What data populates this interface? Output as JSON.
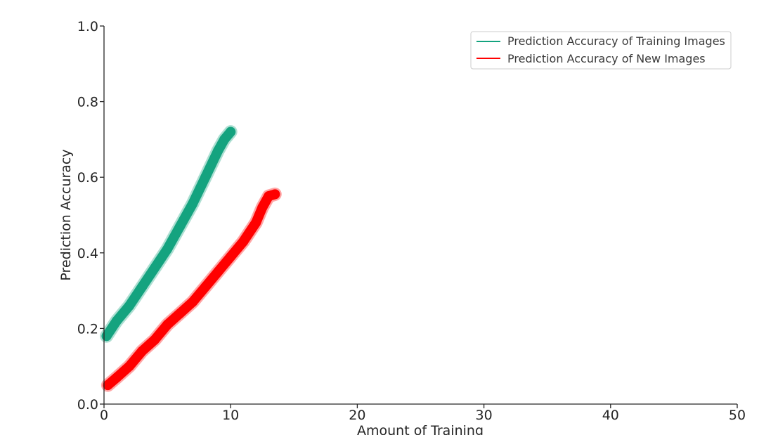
{
  "chart_data": {
    "type": "line",
    "title": "",
    "xlabel": "Amount of Training",
    "ylabel": "Prediction Accuracy",
    "xlim": [
      0,
      50
    ],
    "ylim": [
      0.0,
      1.0
    ],
    "xticks": [
      0,
      10,
      20,
      30,
      40,
      50
    ],
    "xtick_labels": [
      "0",
      "10",
      "20",
      "30",
      "40",
      "50"
    ],
    "yticks": [
      0.0,
      0.2,
      0.4,
      0.6,
      0.8,
      1.0
    ],
    "ytick_labels": [
      "0.0",
      "0.2",
      "0.4",
      "0.6",
      "0.8",
      "1.0"
    ],
    "grid": false,
    "legend_position": "top-right",
    "series": [
      {
        "name": "Prediction Accuracy of Training Images",
        "color": "#14a37f",
        "x": [
          0.2,
          1,
          2,
          3,
          4,
          5,
          6,
          7,
          8,
          9,
          9.5,
          10
        ],
        "y": [
          0.18,
          0.22,
          0.26,
          0.31,
          0.36,
          0.41,
          0.47,
          0.53,
          0.6,
          0.67,
          0.7,
          0.72
        ]
      },
      {
        "name": "Prediction Accuracy of New Images",
        "color": "#ff0000",
        "x": [
          0.3,
          1,
          2,
          3,
          4,
          5,
          6,
          7,
          8,
          9,
          10,
          11,
          12,
          12.5,
          13,
          13.5
        ],
        "y": [
          0.05,
          0.07,
          0.1,
          0.14,
          0.17,
          0.21,
          0.24,
          0.27,
          0.31,
          0.35,
          0.39,
          0.43,
          0.48,
          0.52,
          0.55,
          0.555
        ]
      }
    ]
  }
}
